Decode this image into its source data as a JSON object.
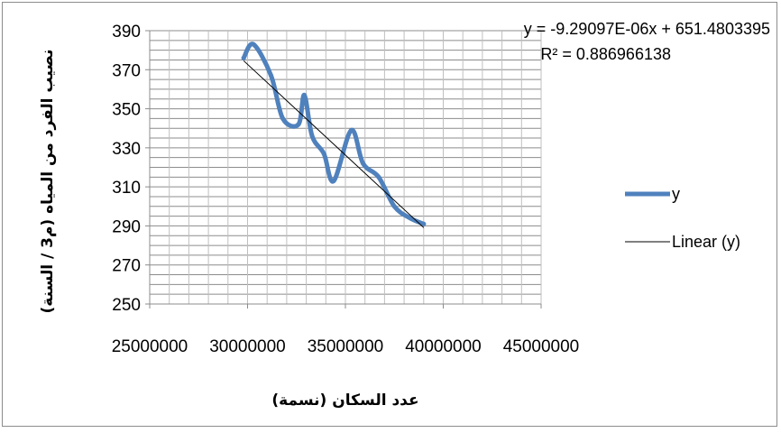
{
  "chart_data": {
    "type": "scatter",
    "xlabel": "عدد السكان (نسمة)",
    "ylabel": "نصيب الفرد من المياه (م3 / السنة)",
    "xlim": [
      25000000,
      45000000
    ],
    "ylim": [
      250,
      390
    ],
    "x_ticks": [
      "25000000",
      "30000000",
      "35000000",
      "40000000",
      "45000000"
    ],
    "y_ticks": [
      "250",
      "270",
      "290",
      "310",
      "330",
      "350",
      "370",
      "390"
    ],
    "grid": true,
    "legend_position": "right",
    "series": [
      {
        "name": "y",
        "color": "#4f81bd",
        "smooth": true,
        "x": [
          29800000,
          30300000,
          31200000,
          31800000,
          32600000,
          32900000,
          33300000,
          33900000,
          34400000,
          35300000,
          35900000,
          36700000,
          37500000,
          38300000,
          39000000
        ],
        "y": [
          376,
          383,
          367,
          345,
          342,
          357,
          336,
          327,
          313,
          339,
          322,
          315,
          300,
          294,
          291
        ]
      }
    ],
    "trendline": {
      "name": "Linear (y)",
      "color": "#000000",
      "slope": -9.29097e-06,
      "intercept": 651.4803395,
      "x_range": [
        29800000,
        39000000
      ],
      "equation": "y = -9.29097E-06x + 651.4803395",
      "r2_label": "R² = 0.886966138"
    }
  }
}
